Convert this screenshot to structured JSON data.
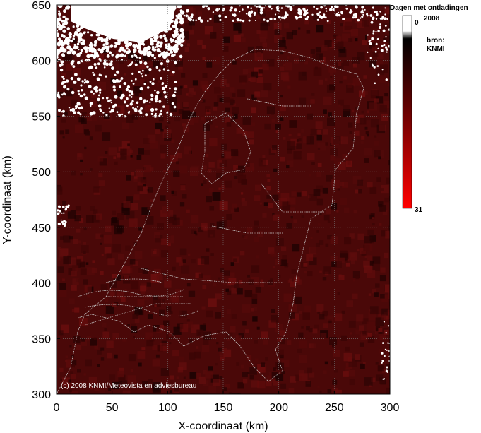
{
  "map": {
    "x_axis": {
      "label": "X-coordinaat (km)",
      "range": [
        0,
        300
      ],
      "ticks": [
        "0",
        "50",
        "100",
        "150",
        "200",
        "250",
        "300"
      ]
    },
    "y_axis": {
      "label": "Y-coordinaat (km)",
      "range": [
        300,
        650
      ],
      "ticks": [
        "300",
        "350",
        "400",
        "450",
        "500",
        "550",
        "600",
        "650"
      ]
    },
    "grid": true,
    "copyright": "(c) 2008 KNMI/Meteovista en adviesbureau",
    "colors": {
      "low": "#ffffff",
      "mid": "#000000",
      "high": "#ff0000",
      "dominant": "#4a0808",
      "border": "#c8c8c8"
    }
  },
  "legend": {
    "title": "Dagen met ontladingen",
    "year": "2008",
    "min_label": "0",
    "max_label": "31",
    "source_label": "bron:",
    "source_name": "KNMI"
  }
}
